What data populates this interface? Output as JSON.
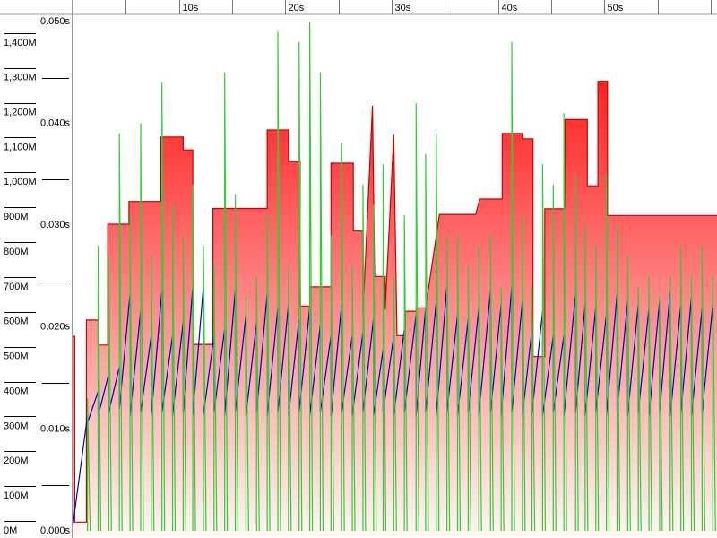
{
  "chart_data": {
    "type": "line",
    "xlim": [
      0,
      60.6
    ],
    "xticks": [
      {
        "value": 10,
        "label": "10s"
      },
      {
        "value": 20,
        "label": "20s"
      },
      {
        "value": 30,
        "label": "30s"
      },
      {
        "value": 40,
        "label": "40s"
      },
      {
        "value": 50,
        "label": "50s"
      }
    ],
    "xminor": [
      0,
      5,
      15,
      25,
      35,
      45,
      55,
      60
    ],
    "ylim": [
      0,
      1482
    ],
    "yticks": [
      {
        "value": 0,
        "label": "0M"
      },
      {
        "value": 100,
        "label": "100M"
      },
      {
        "value": 200,
        "label": "200M"
      },
      {
        "value": 300,
        "label": "300M"
      },
      {
        "value": 400,
        "label": "400M"
      },
      {
        "value": 500,
        "label": "500M"
      },
      {
        "value": 600,
        "label": "600M"
      },
      {
        "value": 700,
        "label": "700M"
      },
      {
        "value": 800,
        "label": "800M"
      },
      {
        "value": 900,
        "label": "900M"
      },
      {
        "value": 1000,
        "label": "1,000M"
      },
      {
        "value": 1100,
        "label": "1,100M"
      },
      {
        "value": 1200,
        "label": "1,200M"
      },
      {
        "value": 1300,
        "label": "1,300M"
      },
      {
        "value": 1400,
        "label": "1,400M"
      }
    ],
    "y2lim": [
      0,
      0.0507
    ],
    "y2ticks": [
      {
        "value": 0,
        "label": "0.000s"
      },
      {
        "value": 0.01,
        "label": "0.010s"
      },
      {
        "value": 0.02,
        "label": "0.020s"
      },
      {
        "value": 0.03,
        "label": "0.030s"
      },
      {
        "value": 0.04,
        "label": "0.040s"
      },
      {
        "value": 0.05,
        "label": "0.050s"
      }
    ],
    "series": [
      {
        "color": "#cc0000",
        "fill": true,
        "x": [
          0,
          0.2,
          0.2,
          1.3,
          1.3,
          2.4,
          2.4,
          3.3,
          3.3,
          5.3,
          5.3,
          8.3,
          8.3,
          10.4,
          10.4,
          11.3,
          11.3,
          13.2,
          13.2,
          18.3,
          18.3,
          20.3,
          20.3,
          21.4,
          21.4,
          22.3,
          22.3,
          24.3,
          24.3,
          26.4,
          26.4,
          27.3,
          27.3,
          28.2,
          28.4,
          29.4,
          29.4,
          30.2,
          30.5,
          31.3,
          31.3,
          32.3,
          32.3,
          33.2,
          34.5,
          37.9,
          38.3,
          40.4,
          40.4,
          42.3,
          42.3,
          43.3,
          43.3,
          44.4,
          44.4,
          46.3,
          46.3,
          48.4,
          48.4,
          49.4,
          49.4,
          50.3,
          50.3,
          60.6
        ],
        "values": [
          558,
          558,
          25,
          25,
          605,
          605,
          533,
          533,
          880,
          880,
          945,
          945,
          1130,
          1130,
          1093,
          1093,
          535,
          535,
          925,
          925,
          1150,
          1150,
          1060,
          1060,
          645,
          645,
          700,
          700,
          1055,
          1055,
          860,
          860,
          620,
          1220,
          730,
          730,
          635,
          1137,
          560,
          560,
          630,
          630,
          640,
          640,
          908,
          908,
          952,
          952,
          1140,
          1140,
          1125,
          1125,
          500,
          500,
          924,
          924,
          1180,
          1180,
          990,
          990,
          1290,
          1290,
          905,
          905
        ]
      },
      {
        "color": "#0000cc",
        "x": [
          0,
          1.4,
          1.4,
          2.4,
          2.4,
          3.4,
          3.4,
          4.4,
          4.4,
          5.4,
          5.4,
          6.4,
          6.4,
          7.4,
          7.4,
          8.4,
          8.4,
          9.4,
          9.4,
          10.4,
          10.4,
          11.3,
          11.3,
          12.3,
          12.3,
          13.3,
          13.3,
          14.3,
          14.3,
          15.3,
          15.3,
          16.3,
          16.3,
          17.3,
          17.3,
          18.3,
          18.3,
          19.3,
          19.3,
          20.3,
          20.3,
          21.3,
          21.3,
          22.3,
          22.3,
          23.3,
          23.3,
          24.3,
          24.3,
          25.3,
          25.3,
          26.3,
          26.3,
          27.3,
          27.3,
          28.3,
          28.3,
          29.2,
          29.2,
          30.2,
          30.2,
          31.2,
          31.2,
          32.3,
          32.3,
          33.2,
          33.2,
          34.2,
          34.2,
          35.2,
          35.2,
          36.2,
          36.2,
          37.2,
          37.2,
          38.2,
          38.2,
          39.3,
          39.3,
          40.3,
          40.3,
          41.3,
          41.3,
          42.3,
          42.3,
          43.2,
          43.2,
          44.2,
          44.2,
          45.2,
          45.2,
          46.2,
          46.2,
          47.3,
          47.3,
          48.2,
          48.2,
          49.2,
          49.2,
          50.2,
          50.2,
          51.2,
          51.2,
          52.2,
          52.2,
          53.2,
          53.2,
          54.2,
          54.2,
          55.2,
          55.2,
          56.2,
          56.2,
          57.2,
          57.2,
          58.2,
          58.2,
          59.2,
          59.2,
          60.2
        ],
        "values": [
          10,
          330,
          310,
          400,
          330,
          450,
          340,
          470,
          350,
          680,
          330,
          630,
          340,
          560,
          330,
          690,
          340,
          560,
          330,
          600,
          340,
          700,
          330,
          700,
          330,
          560,
          340,
          580,
          330,
          690,
          340,
          620,
          330,
          600,
          340,
          680,
          330,
          640,
          340,
          650,
          330,
          610,
          340,
          640,
          330,
          590,
          340,
          560,
          330,
          650,
          340,
          560,
          330,
          570,
          340,
          610,
          330,
          520,
          340,
          560,
          330,
          580,
          340,
          620,
          330,
          640,
          340,
          660,
          330,
          700,
          340,
          620,
          330,
          610,
          340,
          640,
          330,
          690,
          340,
          650,
          330,
          700,
          340,
          660,
          330,
          580,
          340,
          630,
          330,
          560,
          340,
          560,
          330,
          680,
          340,
          650,
          330,
          640,
          340,
          620,
          330,
          680,
          340,
          660,
          330,
          650,
          340,
          640,
          330,
          660,
          340,
          690,
          330,
          650,
          340,
          670,
          330,
          640,
          340,
          650
        ]
      },
      {
        "color": "#33cc33",
        "axis": "y2",
        "spikes": true,
        "x": [
          1.4,
          2.4,
          3.4,
          4.4,
          5.4,
          6.4,
          7.4,
          8.4,
          9.4,
          10.4,
          11.3,
          12.3,
          13.3,
          14.3,
          15.3,
          16.3,
          17.3,
          18.3,
          19.3,
          20.3,
          21.3,
          22.3,
          23.3,
          24.3,
          25.3,
          26.3,
          27.3,
          28.3,
          29.2,
          30.2,
          31.2,
          32.3,
          33.2,
          34.2,
          35.2,
          36.2,
          37.2,
          38.2,
          39.3,
          40.3,
          41.3,
          42.3,
          43.2,
          44.2,
          45.2,
          46.2,
          47.3,
          48.2,
          49.2,
          50.2,
          51.2,
          52.2,
          53.2,
          54.2,
          55.2,
          56.2,
          57.2,
          58.2,
          59.2,
          60.2
        ],
        "values": [
          0.013,
          0.028,
          0.027,
          0.039,
          0.031,
          0.04,
          0.027,
          0.044,
          0.032,
          0.029,
          0.034,
          0.028,
          0.026,
          0.045,
          0.033,
          0.023,
          0.025,
          0.031,
          0.049,
          0.026,
          0.048,
          0.05,
          0.045,
          0.029,
          0.038,
          0.026,
          0.034,
          0.032,
          0.036,
          0.025,
          0.031,
          0.042,
          0.037,
          0.039,
          0.029,
          0.029,
          0.026,
          0.028,
          0.029,
          0.024,
          0.048,
          0.031,
          0.024,
          0.036,
          0.034,
          0.041,
          0.035,
          0.03,
          0.028,
          0.035,
          0.03,
          0.027,
          0.024,
          0.025,
          0.023,
          0.025,
          0.028,
          0.025,
          0.028,
          0.025
        ]
      }
    ]
  }
}
